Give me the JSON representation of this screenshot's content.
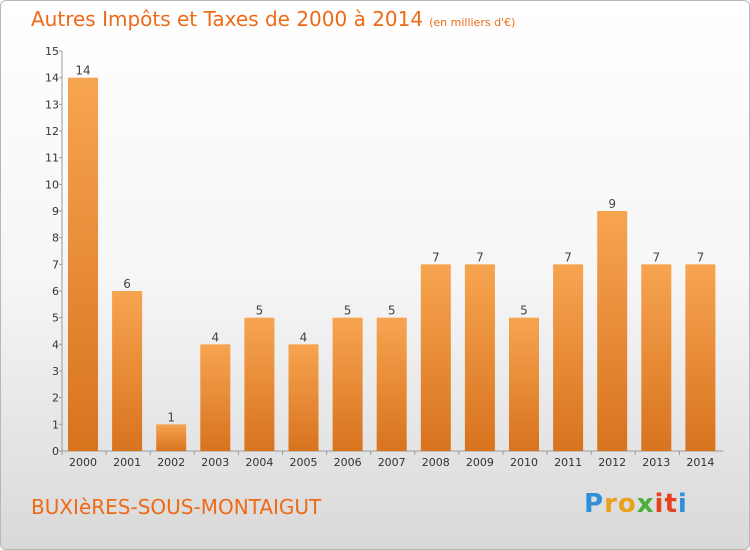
{
  "title": "Autres Impôts et Taxes de 2000 à 2014",
  "unit": "(en milliers d'€)",
  "commune": "BUXIèRES-SOUS-MONTAIGUT",
  "logo": {
    "letters": [
      "P",
      "r",
      "o",
      "x",
      "i",
      "t",
      "i"
    ],
    "colors": [
      "#2f8fd8",
      "#e8a21c",
      "#e8a21c",
      "#4bae3a",
      "#e8401c",
      "#e8401c",
      "#2f8fd8"
    ]
  },
  "colors": {
    "bar_light": "#f7a450",
    "bar_dark": "#d8731e",
    "accent": "#ee6a16"
  },
  "chart_data": {
    "type": "bar",
    "categories": [
      "2000",
      "2001",
      "2002",
      "2003",
      "2004",
      "2005",
      "2006",
      "2007",
      "2008",
      "2009",
      "2010",
      "2011",
      "2012",
      "2013",
      "2014"
    ],
    "values": [
      14,
      6,
      1,
      4,
      5,
      4,
      5,
      5,
      7,
      7,
      5,
      7,
      9,
      7,
      7
    ],
    "data_labels": [
      "14",
      "6",
      "1",
      "4",
      "5",
      "4",
      "5",
      "5",
      "7",
      "7",
      "5",
      "7",
      "9",
      "7",
      "7"
    ],
    "y_ticks": [
      "0",
      "1",
      "2",
      "3",
      "4",
      "5",
      "6",
      "7",
      "8",
      "9",
      "10",
      "11",
      "12",
      "13",
      "14",
      "15"
    ],
    "ylim": [
      0,
      15
    ],
    "grid": false,
    "legend": "none"
  }
}
